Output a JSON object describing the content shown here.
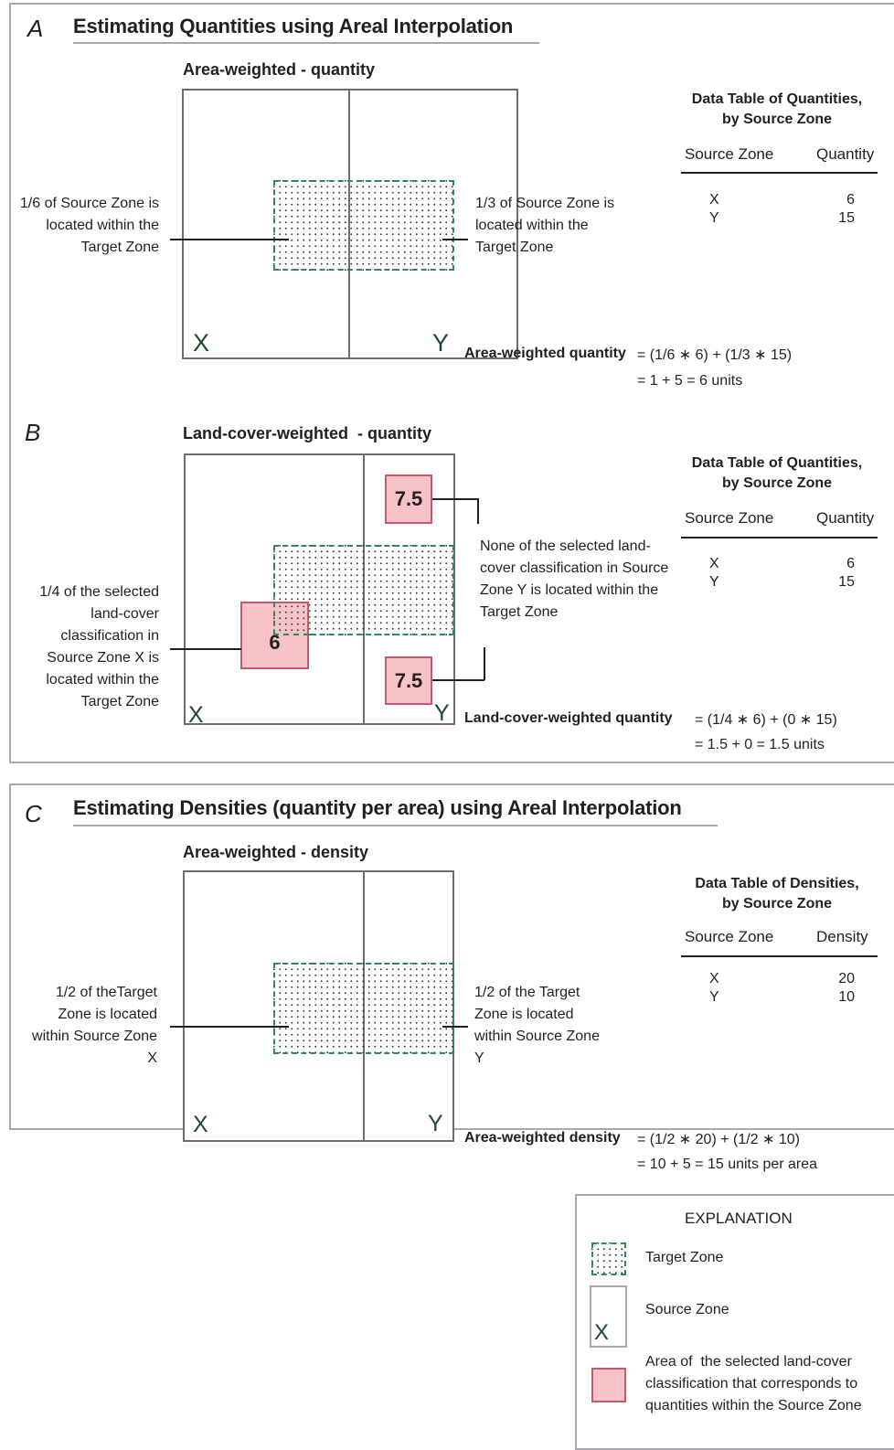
{
  "panels": {
    "A": {
      "letter": "A",
      "title": "Estimating Quantities using Areal Interpolation",
      "subtitle": "Area-weighted - quantity",
      "zone_x": "X",
      "zone_y": "Y",
      "left_note": "1/6 of Source Zone is located within the Target Zone",
      "right_note": "1/3 of Source Zone is located within the Target Zone",
      "table": {
        "heading_line1": "Data Table of Quantities,",
        "heading_line2": "by Source Zone",
        "col1": "Source Zone",
        "col2": "Quantity",
        "rows": [
          {
            "zone": "X",
            "value": "6"
          },
          {
            "zone": "Y",
            "value": "15"
          }
        ]
      },
      "formula_label": "Area-weighted quantity",
      "formula_line1": "= (1/6 ∗ 6) + (1/3 ∗ 15)",
      "formula_line2": "= 1 + 5 = 6 units"
    },
    "B": {
      "letter": "B",
      "subtitle": "Land-cover-weighted  - quantity",
      "zone_x": "X",
      "zone_y": "Y",
      "pink_top": "7.5",
      "pink_left": "6",
      "pink_bottom": "7.5",
      "left_note": "1/4 of the selected land-cover classification in Source Zone X is located within the Target Zone",
      "right_note": "None of the selected land-cover classification in Source Zone Y is located within the Target Zone",
      "table": {
        "heading_line1": "Data Table of Quantities,",
        "heading_line2": "by Source Zone",
        "col1": "Source Zone",
        "col2": "Quantity",
        "rows": [
          {
            "zone": "X",
            "value": "6"
          },
          {
            "zone": "Y",
            "value": "15"
          }
        ]
      },
      "formula_label": "Land-cover-weighted quantity",
      "formula_line1": "= (1/4 ∗ 6) + (0 ∗ 15)",
      "formula_line2": "= 1.5 + 0 = 1.5 units"
    },
    "C": {
      "letter": "C",
      "title": "Estimating Densities (quantity per area) using Areal Interpolation",
      "subtitle": "Area-weighted - density",
      "zone_x": "X",
      "zone_y": "Y",
      "left_note": "1/2 of theTarget Zone is located within Source Zone X",
      "right_note": "1/2 of the Target Zone is located within Source Zone Y",
      "table": {
        "heading_line1": "Data Table of Densities,",
        "heading_line2": "by Source Zone",
        "col1": "Source Zone",
        "col2": "Density",
        "rows": [
          {
            "zone": "X",
            "value": "20"
          },
          {
            "zone": "Y",
            "value": "10"
          }
        ]
      },
      "formula_label": "Area-weighted density",
      "formula_line1": "= (1/2 ∗ 20) + (1/2 ∗ 10)",
      "formula_line2": "= 10 + 5 = 15 units per area"
    }
  },
  "legend": {
    "title": "EXPLANATION",
    "target": "Target Zone",
    "source": "Source Zone",
    "source_letter": "X",
    "area": "Area of  the selected land-cover classification that corresponds to quantities within the Source Zone"
  },
  "colors": {
    "target_border": "#2e8b57",
    "pink_fill": "#f7c3c9",
    "pink_border": "#c45a6a",
    "zone_letter": "#1c4a2e"
  }
}
